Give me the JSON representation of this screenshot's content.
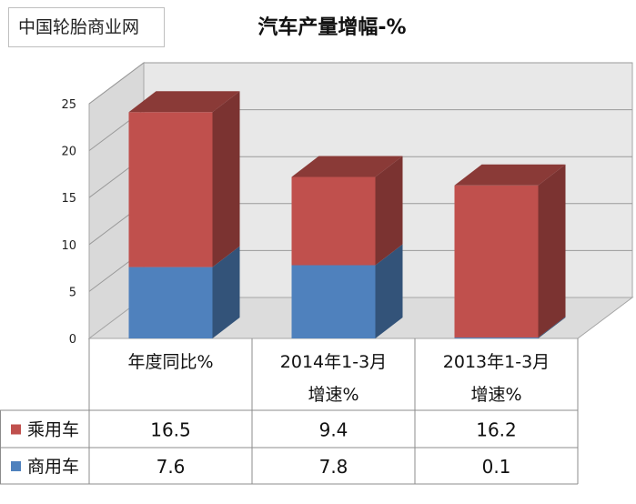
{
  "source_label": "中国轮胎商业网",
  "chart_data": {
    "type": "bar",
    "stacked": true,
    "three_d": true,
    "title": "汽车产量增幅-%",
    "categories": [
      [
        "年度同比%"
      ],
      [
        "2014年1-3月",
        "增速%"
      ],
      [
        "2013年1-3月",
        "增速%"
      ]
    ],
    "series": [
      {
        "name": "商用车",
        "values": [
          7.6,
          7.8,
          0.1
        ],
        "color": "#4f81bd"
      },
      {
        "name": "乘用车",
        "values": [
          16.5,
          9.4,
          16.2
        ],
        "color": "#c0504d"
      }
    ],
    "ylim": [
      0,
      25
    ],
    "yticks": [
      0,
      5,
      10,
      15,
      20,
      25
    ],
    "grid": true,
    "legend": "data-table"
  }
}
